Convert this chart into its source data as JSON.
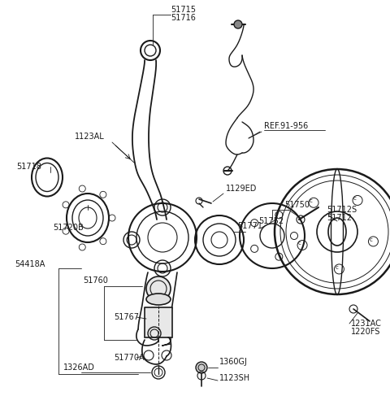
{
  "bg_color": "#ffffff",
  "line_color": "#1a1a1a",
  "text_color": "#1a1a1a",
  "figsize": [
    4.8,
    4.87
  ],
  "dpi": 100,
  "xlim": [
    0,
    480
  ],
  "ylim": [
    0,
    487
  ]
}
